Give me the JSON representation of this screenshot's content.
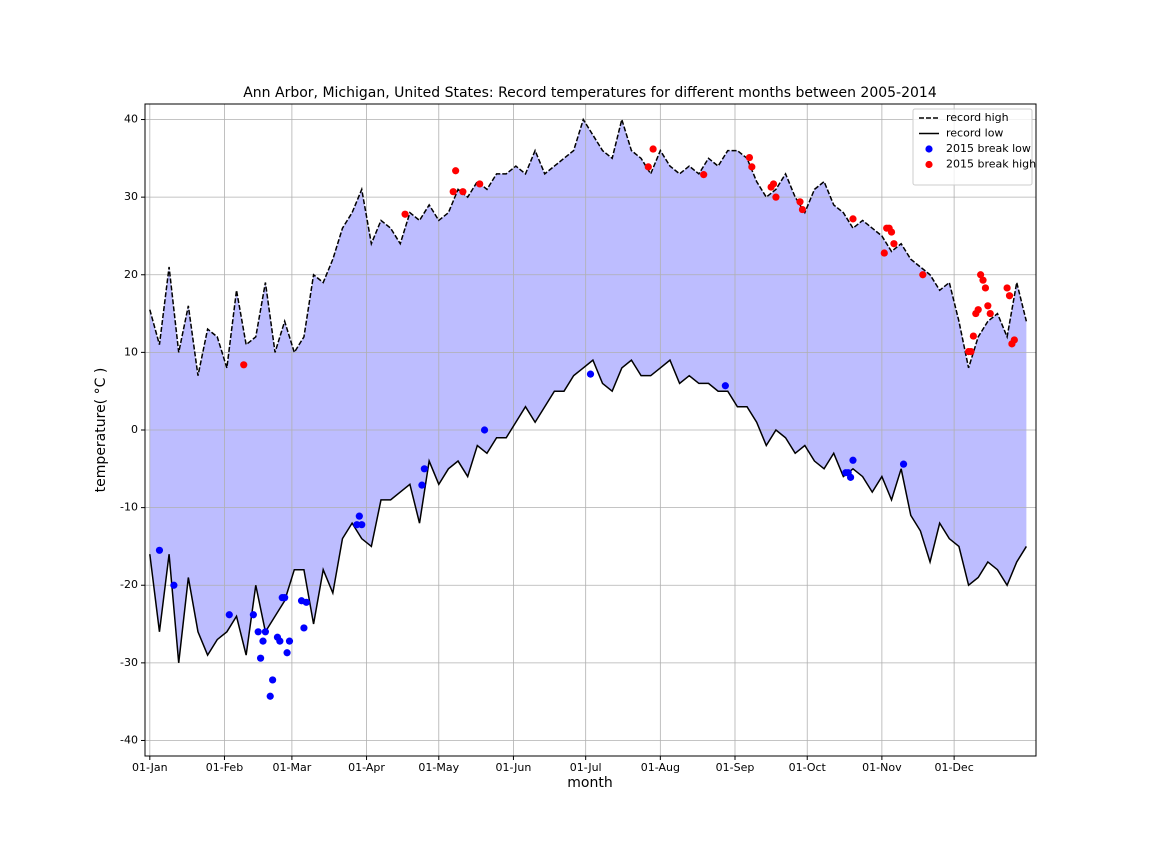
{
  "chart_data": {
    "type": "line",
    "title": "Ann Arbor, Michigan, United States: Record temperatures for different months between 2005-2014",
    "xlabel": "month",
    "ylabel": "temperature( °C )",
    "x": [
      0,
      4,
      8,
      12,
      16,
      20,
      24,
      28,
      32,
      36,
      40,
      44,
      48,
      52,
      56,
      60,
      64,
      68,
      72,
      76,
      80,
      84,
      88,
      92,
      96,
      100,
      104,
      108,
      112,
      116,
      120,
      124,
      128,
      132,
      136,
      140,
      144,
      148,
      152,
      156,
      160,
      164,
      168,
      172,
      176,
      180,
      184,
      188,
      192,
      196,
      200,
      204,
      208,
      212,
      216,
      220,
      224,
      228,
      232,
      236,
      240,
      244,
      248,
      252,
      256,
      260,
      264,
      268,
      272,
      276,
      280,
      284,
      288,
      292,
      296,
      300,
      304,
      308,
      312,
      316,
      320,
      324,
      328,
      332,
      336,
      340,
      344,
      348,
      352,
      356,
      360,
      364
    ],
    "xlim": [
      -2,
      368
    ],
    "ylim": [
      -42,
      42
    ],
    "xticks": [
      {
        "value": 0,
        "label": "01-Jan"
      },
      {
        "value": 31,
        "label": "01-Feb"
      },
      {
        "value": 59,
        "label": "01-Mar"
      },
      {
        "value": 90,
        "label": "01-Apr"
      },
      {
        "value": 120,
        "label": "01-May"
      },
      {
        "value": 151,
        "label": "01-Jun"
      },
      {
        "value": 181,
        "label": "01-Jul"
      },
      {
        "value": 212,
        "label": "01-Aug"
      },
      {
        "value": 243,
        "label": "01-Sep"
      },
      {
        "value": 273,
        "label": "01-Oct"
      },
      {
        "value": 304,
        "label": "01-Nov"
      },
      {
        "value": 334,
        "label": "01-Dec"
      }
    ],
    "yticks": [
      -40,
      -30,
      -20,
      -10,
      0,
      10,
      20,
      30,
      40
    ],
    "grid": true,
    "legend": "upper right",
    "fill_color": "#bdbdff",
    "series": [
      {
        "name": "record high",
        "color": "#000000",
        "style": "dashed",
        "values": [
          15.5,
          11,
          21,
          10,
          16,
          7,
          13,
          12,
          8,
          18,
          11,
          12,
          19,
          10,
          14,
          10,
          12,
          20,
          19,
          22,
          26,
          28,
          31,
          24,
          27,
          26,
          24,
          28,
          27,
          29,
          27,
          28,
          31,
          30,
          32,
          31,
          33,
          33,
          34,
          33,
          36,
          33,
          34,
          35,
          36,
          40,
          38,
          36,
          35,
          40,
          36,
          35,
          33,
          36,
          34,
          33,
          34,
          33,
          35,
          34,
          36,
          36,
          35,
          32,
          30,
          31,
          33,
          30,
          28,
          31,
          32,
          29,
          28,
          26,
          27,
          26,
          25,
          23,
          24,
          22,
          21,
          20,
          18,
          19,
          14,
          8,
          12,
          14,
          15,
          12,
          19,
          14
        ]
      },
      {
        "name": "record low",
        "color": "#000000",
        "style": "solid",
        "values": [
          -16,
          -26,
          -16,
          -30,
          -19,
          -26,
          -29,
          -27,
          -26,
          -24,
          -29,
          -20,
          -26,
          -24,
          -22,
          -18,
          -18,
          -25,
          -18,
          -21,
          -14,
          -12,
          -14,
          -15,
          -9,
          -9,
          -8,
          -7,
          -12,
          -4,
          -7,
          -5,
          -4,
          -6,
          -2,
          -3,
          -1,
          -1,
          1,
          3,
          1,
          3,
          5,
          5,
          7,
          8,
          9,
          6,
          5,
          8,
          9,
          7,
          7,
          8,
          9,
          6,
          7,
          6,
          6,
          5,
          5,
          3,
          3,
          1,
          -2,
          0,
          -1,
          -3,
          -2,
          -4,
          -5,
          -3,
          -6,
          -5,
          -6,
          -8,
          -6,
          -9,
          -5,
          -11,
          -13,
          -17,
          -12,
          -14,
          -15,
          -20,
          -19,
          -17,
          -18,
          -20,
          -17,
          -15
        ]
      }
    ],
    "scatter": [
      {
        "name": "2015 break low",
        "color": "#0000ff",
        "x": [
          4,
          10,
          33,
          43,
          45,
          46,
          47,
          48,
          50,
          51,
          53,
          54,
          55,
          56,
          57,
          58,
          63,
          64,
          65,
          86,
          87,
          88,
          113,
          114,
          139,
          183,
          239,
          289,
          290,
          291,
          292,
          313
        ],
        "values": [
          -15.5,
          -20,
          -23.8,
          -23.8,
          -26,
          -29.4,
          -27.2,
          -26,
          -34.3,
          -32.2,
          -26.7,
          -27.2,
          -21.6,
          -21.6,
          -28.7,
          -27.2,
          -22,
          -25.5,
          -22.2,
          -12.2,
          -11.1,
          -12.2,
          -7.1,
          -5,
          0,
          7.2,
          5.7,
          -5.5,
          -5.5,
          -6.1,
          -3.9,
          -4.4
        ]
      },
      {
        "name": "2015 break high",
        "color": "#ff0000",
        "x": [
          39,
          106,
          126,
          127,
          130,
          137,
          207,
          209,
          230,
          249,
          250,
          258,
          259,
          260,
          270,
          271,
          292,
          305,
          306,
          307,
          308,
          309,
          321,
          340,
          341,
          342,
          343,
          344,
          345,
          346,
          347,
          348,
          349,
          356,
          357,
          358,
          359
        ],
        "values": [
          8.4,
          27.8,
          30.7,
          33.4,
          30.7,
          31.7,
          33.9,
          36.2,
          32.9,
          35.1,
          33.9,
          31.3,
          31.7,
          30,
          29.4,
          28.4,
          27.2,
          22.8,
          26,
          26,
          25.5,
          24,
          20,
          10.1,
          10.1,
          12.1,
          15,
          15.5,
          20,
          19.3,
          18.3,
          16,
          15,
          18.3,
          17.3,
          11.1,
          11.6
        ]
      }
    ]
  }
}
